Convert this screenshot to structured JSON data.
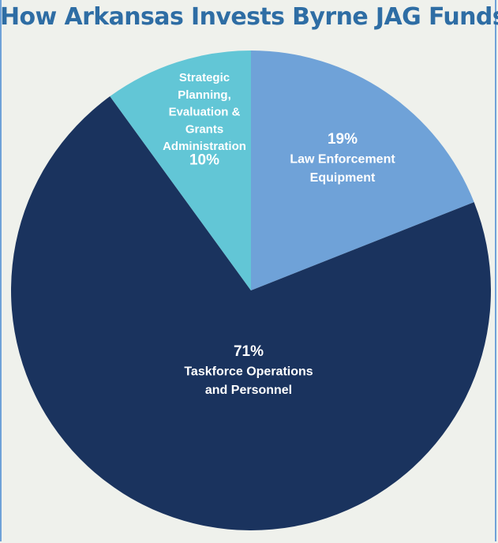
{
  "chart_data": {
    "type": "pie",
    "title": "How Arkansas Invests Byrne JAG Funds",
    "slices": [
      {
        "label_lines": [
          "Law Enforcement",
          "Equipment"
        ],
        "value": 19,
        "value_label": "19%",
        "color": "#6fa2d8"
      },
      {
        "label_lines": [
          "Taskforce Operations",
          "and Personnel"
        ],
        "value": 71,
        "value_label": "71%",
        "color": "#1a335e"
      },
      {
        "label_lines": [
          "Strategic",
          "Planning,",
          "Evaluation &",
          "Grants",
          "Administration"
        ],
        "value": 10,
        "value_label": "10%",
        "color": "#62c6d6"
      }
    ]
  }
}
